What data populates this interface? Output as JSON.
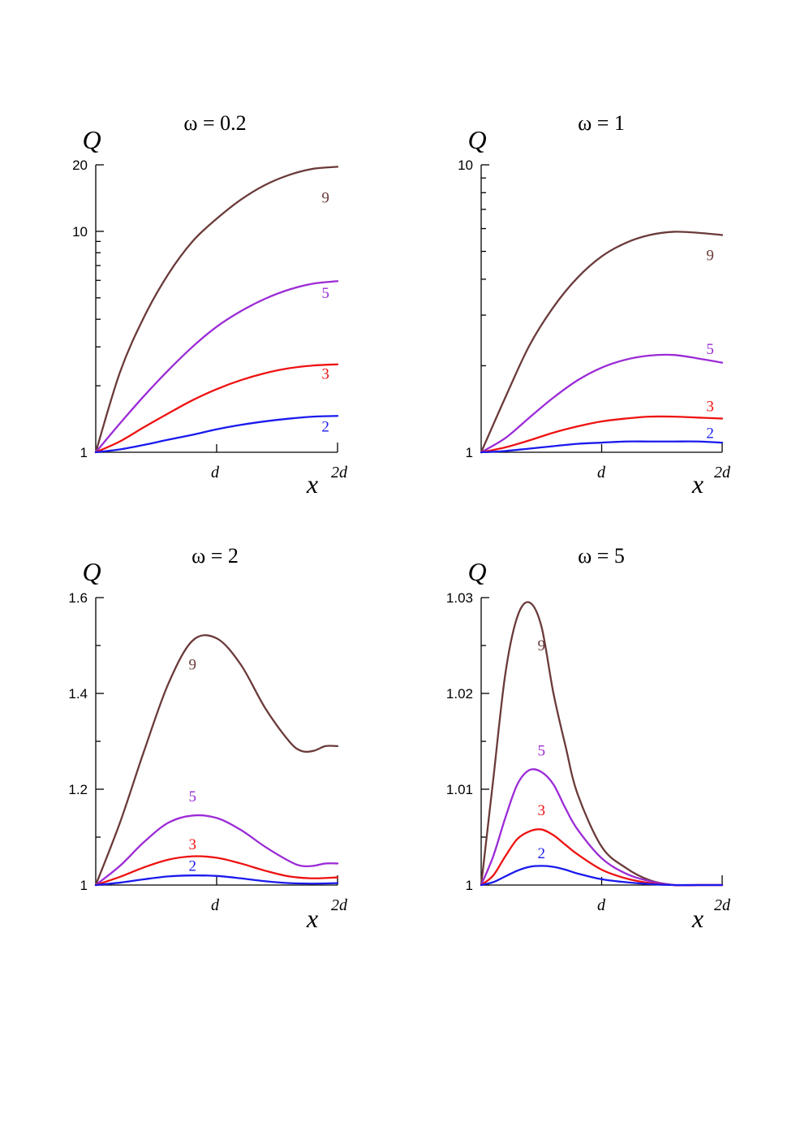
{
  "chart_data": [
    {
      "type": "line",
      "title": "ω = 0.2",
      "ylabel": "Q",
      "xlabel": "x",
      "x_ticks": [
        "d",
        "2d"
      ],
      "y_scale": "log",
      "ylim": [
        1,
        20
      ],
      "y_ticks": [
        "1",
        "10",
        "20"
      ],
      "grid": false,
      "series": [
        {
          "name": "9",
          "color": "#6b3a3a",
          "x": [
            0,
            0.1,
            0.2,
            0.3,
            0.4,
            0.5,
            0.6,
            0.7,
            0.8,
            0.9,
            1.0
          ],
          "y": [
            1.0,
            2.3,
            4.1,
            6.4,
            9.0,
            11.4,
            13.9,
            16.2,
            18.0,
            19.2,
            19.6
          ]
        },
        {
          "name": "5",
          "color": "#9b2bd6",
          "x": [
            0,
            0.1,
            0.2,
            0.3,
            0.4,
            0.5,
            0.6,
            0.7,
            0.8,
            0.9,
            1.0
          ],
          "y": [
            1.0,
            1.35,
            1.8,
            2.35,
            3.0,
            3.7,
            4.35,
            4.95,
            5.45,
            5.8,
            5.95
          ]
        },
        {
          "name": "3",
          "color": "#ee1111",
          "x": [
            0,
            0.1,
            0.2,
            0.3,
            0.4,
            0.5,
            0.6,
            0.7,
            0.8,
            0.9,
            1.0
          ],
          "y": [
            1.0,
            1.12,
            1.3,
            1.5,
            1.72,
            1.93,
            2.12,
            2.28,
            2.4,
            2.47,
            2.5
          ]
        },
        {
          "name": "2",
          "color": "#1a1aee",
          "x": [
            0,
            0.1,
            0.2,
            0.3,
            0.4,
            0.5,
            0.6,
            0.7,
            0.8,
            0.9,
            1.0
          ],
          "y": [
            1.0,
            1.03,
            1.08,
            1.14,
            1.2,
            1.27,
            1.33,
            1.38,
            1.42,
            1.45,
            1.46
          ]
        }
      ]
    },
    {
      "type": "line",
      "title": "ω = 1",
      "ylabel": "Q",
      "xlabel": "x",
      "x_ticks": [
        "d",
        "2d"
      ],
      "y_scale": "log",
      "ylim": [
        1,
        10
      ],
      "y_ticks": [
        "1",
        "10"
      ],
      "grid": false,
      "series": [
        {
          "name": "9",
          "color": "#6b3a3a",
          "x": [
            0,
            0.1,
            0.2,
            0.3,
            0.4,
            0.5,
            0.6,
            0.7,
            0.8,
            0.9,
            1.0
          ],
          "y": [
            1.0,
            1.55,
            2.35,
            3.2,
            4.05,
            4.8,
            5.35,
            5.7,
            5.85,
            5.8,
            5.7
          ]
        },
        {
          "name": "5",
          "color": "#9b2bd6",
          "x": [
            0,
            0.1,
            0.2,
            0.3,
            0.4,
            0.5,
            0.6,
            0.7,
            0.8,
            0.9,
            1.0
          ],
          "y": [
            1.0,
            1.12,
            1.32,
            1.55,
            1.78,
            1.97,
            2.1,
            2.17,
            2.18,
            2.12,
            2.05
          ]
        },
        {
          "name": "3",
          "color": "#ee1111",
          "x": [
            0,
            0.1,
            0.2,
            0.3,
            0.4,
            0.5,
            0.6,
            0.7,
            0.8,
            0.9,
            1.0
          ],
          "y": [
            1.0,
            1.04,
            1.1,
            1.17,
            1.23,
            1.28,
            1.31,
            1.33,
            1.33,
            1.32,
            1.31
          ]
        },
        {
          "name": "2",
          "color": "#1a1aee",
          "x": [
            0,
            0.1,
            0.2,
            0.3,
            0.4,
            0.5,
            0.6,
            0.7,
            0.8,
            0.9,
            1.0
          ],
          "y": [
            1.0,
            1.01,
            1.03,
            1.05,
            1.07,
            1.08,
            1.09,
            1.09,
            1.09,
            1.09,
            1.08
          ]
        }
      ]
    },
    {
      "type": "line",
      "title": "ω = 2",
      "ylabel": "Q",
      "xlabel": "x",
      "x_ticks": [
        "d",
        "2d"
      ],
      "y_scale": "linear",
      "ylim": [
        1,
        1.6
      ],
      "y_ticks": [
        "1",
        "1.2",
        "1.4",
        "1.6"
      ],
      "grid": false,
      "series": [
        {
          "name": "9",
          "color": "#6b3a3a",
          "x": [
            0,
            0.1,
            0.2,
            0.3,
            0.4,
            0.5,
            0.6,
            0.7,
            0.8,
            0.85,
            0.9,
            0.95,
            1.0
          ],
          "y": [
            1.0,
            1.13,
            1.28,
            1.42,
            1.51,
            1.515,
            1.46,
            1.37,
            1.3,
            1.28,
            1.28,
            1.29,
            1.29
          ]
        },
        {
          "name": "5",
          "color": "#9b2bd6",
          "x": [
            0,
            0.1,
            0.2,
            0.3,
            0.4,
            0.5,
            0.6,
            0.7,
            0.8,
            0.85,
            0.9,
            0.95,
            1.0
          ],
          "y": [
            1.0,
            1.04,
            1.09,
            1.13,
            1.145,
            1.14,
            1.115,
            1.08,
            1.05,
            1.04,
            1.04,
            1.045,
            1.045
          ]
        },
        {
          "name": "3",
          "color": "#ee1111",
          "x": [
            0,
            0.1,
            0.2,
            0.3,
            0.4,
            0.5,
            0.6,
            0.7,
            0.8,
            0.9,
            1.0
          ],
          "y": [
            1.0,
            1.017,
            1.037,
            1.053,
            1.06,
            1.057,
            1.045,
            1.03,
            1.018,
            1.014,
            1.016
          ]
        },
        {
          "name": "2",
          "color": "#1a1aee",
          "x": [
            0,
            0.1,
            0.2,
            0.3,
            0.4,
            0.5,
            0.6,
            0.7,
            0.8,
            0.9,
            1.0
          ],
          "y": [
            1.0,
            1.005,
            1.012,
            1.018,
            1.02,
            1.019,
            1.014,
            1.008,
            1.004,
            1.003,
            1.004
          ]
        }
      ]
    },
    {
      "type": "line",
      "title": "ω = 5",
      "ylabel": "Q",
      "xlabel": "x",
      "x_ticks": [
        "d",
        "2d"
      ],
      "y_scale": "linear",
      "ylim": [
        1,
        1.03
      ],
      "y_ticks": [
        "1",
        "1.01",
        "1.02",
        "1.03"
      ],
      "grid": false,
      "series": [
        {
          "name": "9",
          "color": "#6b3a3a",
          "x": [
            0,
            0.05,
            0.1,
            0.15,
            0.2,
            0.25,
            0.3,
            0.35,
            0.4,
            0.5,
            0.6,
            0.7,
            0.8,
            0.9,
            1.0
          ],
          "y": [
            1.0,
            1.011,
            1.022,
            1.028,
            1.0295,
            1.027,
            1.02,
            1.0145,
            1.0095,
            1.004,
            1.0018,
            1.0005,
            1.0,
            1.0,
            1.0
          ]
        },
        {
          "name": "5",
          "color": "#9b2bd6",
          "x": [
            0,
            0.05,
            0.1,
            0.15,
            0.2,
            0.25,
            0.3,
            0.35,
            0.4,
            0.5,
            0.6,
            0.7,
            0.8,
            0.9,
            1.0
          ],
          "y": [
            1.0,
            1.003,
            1.007,
            1.0105,
            1.012,
            1.0118,
            1.0105,
            1.008,
            1.0058,
            1.0028,
            1.0012,
            1.0004,
            1.0,
            1.0,
            1.0
          ]
        },
        {
          "name": "3",
          "color": "#ee1111",
          "x": [
            0,
            0.05,
            0.1,
            0.15,
            0.2,
            0.25,
            0.3,
            0.35,
            0.4,
            0.5,
            0.6,
            0.7,
            0.8,
            0.9,
            1.0
          ],
          "y": [
            1.0,
            1.001,
            1.003,
            1.0048,
            1.0056,
            1.0058,
            1.0052,
            1.0042,
            1.0032,
            1.0016,
            1.0007,
            1.0002,
            1.0,
            1.0,
            1.0
          ]
        },
        {
          "name": "2",
          "color": "#1a1aee",
          "x": [
            0,
            0.05,
            0.1,
            0.15,
            0.2,
            0.25,
            0.3,
            0.35,
            0.4,
            0.5,
            0.6,
            0.7,
            0.8,
            0.9,
            1.0
          ],
          "y": [
            1.0,
            1.0003,
            1.0009,
            1.0015,
            1.0019,
            1.002,
            1.0019,
            1.0016,
            1.0012,
            1.0006,
            1.0003,
            1.0001,
            1.0,
            1.0,
            1.0
          ]
        }
      ]
    }
  ]
}
